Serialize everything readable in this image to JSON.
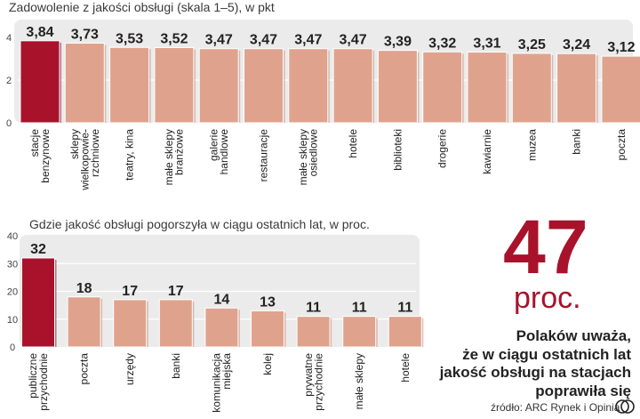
{
  "chart_data": [
    {
      "type": "bar",
      "title": "Zadowolenie z jakości obsługi (skala 1–5), w pkt",
      "ylim": [
        0,
        4
      ],
      "yticks": [
        "0",
        "2",
        "4"
      ],
      "categories": [
        [
          "stacje",
          "benzynowe"
        ],
        [
          "sklepy",
          "wielkopowie-",
          "rzchniowe"
        ],
        [
          "teatry, kina"
        ],
        [
          "małe sklepy",
          "branżowe"
        ],
        [
          "galerie",
          "handlowe"
        ],
        [
          "restauracje"
        ],
        [
          "małe sklepy",
          "osiedlowe"
        ],
        [
          "hotele"
        ],
        [
          "biblioteki"
        ],
        [
          "drogerie"
        ],
        [
          "kawiarnie"
        ],
        [
          "muzea"
        ],
        [
          "banki"
        ],
        [
          "poczta"
        ]
      ],
      "values": [
        3.84,
        3.73,
        3.53,
        3.52,
        3.47,
        3.47,
        3.47,
        3.47,
        3.39,
        3.32,
        3.31,
        3.25,
        3.24,
        3.12
      ],
      "value_labels": [
        "3,84",
        "3,73",
        "3,53",
        "3,52",
        "3,47",
        "3,47",
        "3,47",
        "3,47",
        "3,39",
        "3,32",
        "3,31",
        "3,25",
        "3,24",
        "3,12"
      ],
      "highlight_index": 0,
      "grid": true
    },
    {
      "type": "bar",
      "title": "Gdzie jakość obsługi pogorszyła w ciągu ostatnich lat, w proc.",
      "ylim": [
        0,
        40
      ],
      "yticks": [
        "0",
        "10",
        "20",
        "30",
        "40"
      ],
      "categories": [
        [
          "publiczne",
          "przychodnie"
        ],
        [
          "poczta"
        ],
        [
          "urzędy"
        ],
        [
          "banki"
        ],
        [
          "komunikacja",
          "miejska"
        ],
        [
          "kolej"
        ],
        [
          "prywatne",
          "przychodnie"
        ],
        [
          "małe sklepy"
        ],
        [
          "hotele"
        ]
      ],
      "values": [
        32,
        18,
        17,
        17,
        14,
        13,
        11,
        11,
        11
      ],
      "value_labels": [
        "32",
        "18",
        "17",
        "17",
        "14",
        "13",
        "11",
        "11",
        "11"
      ],
      "highlight_index": 0,
      "grid": true
    }
  ],
  "callout": {
    "number": "47",
    "unit": "proc.",
    "statement_lines": [
      "Polaków uważa,",
      "że w ciągu ostatnich lat",
      "jakość obsługi na stacjach",
      "poprawiła się"
    ]
  },
  "source": "źródło: ARC Rynek i Opinia",
  "logo_text": "cp",
  "colors": {
    "highlight": "#a8122b",
    "bar": "#dfa38d",
    "bar_shadow": "#c78a75",
    "panel": "#ebebeb",
    "grid": "#ffffff",
    "axis_text": "#444444"
  }
}
